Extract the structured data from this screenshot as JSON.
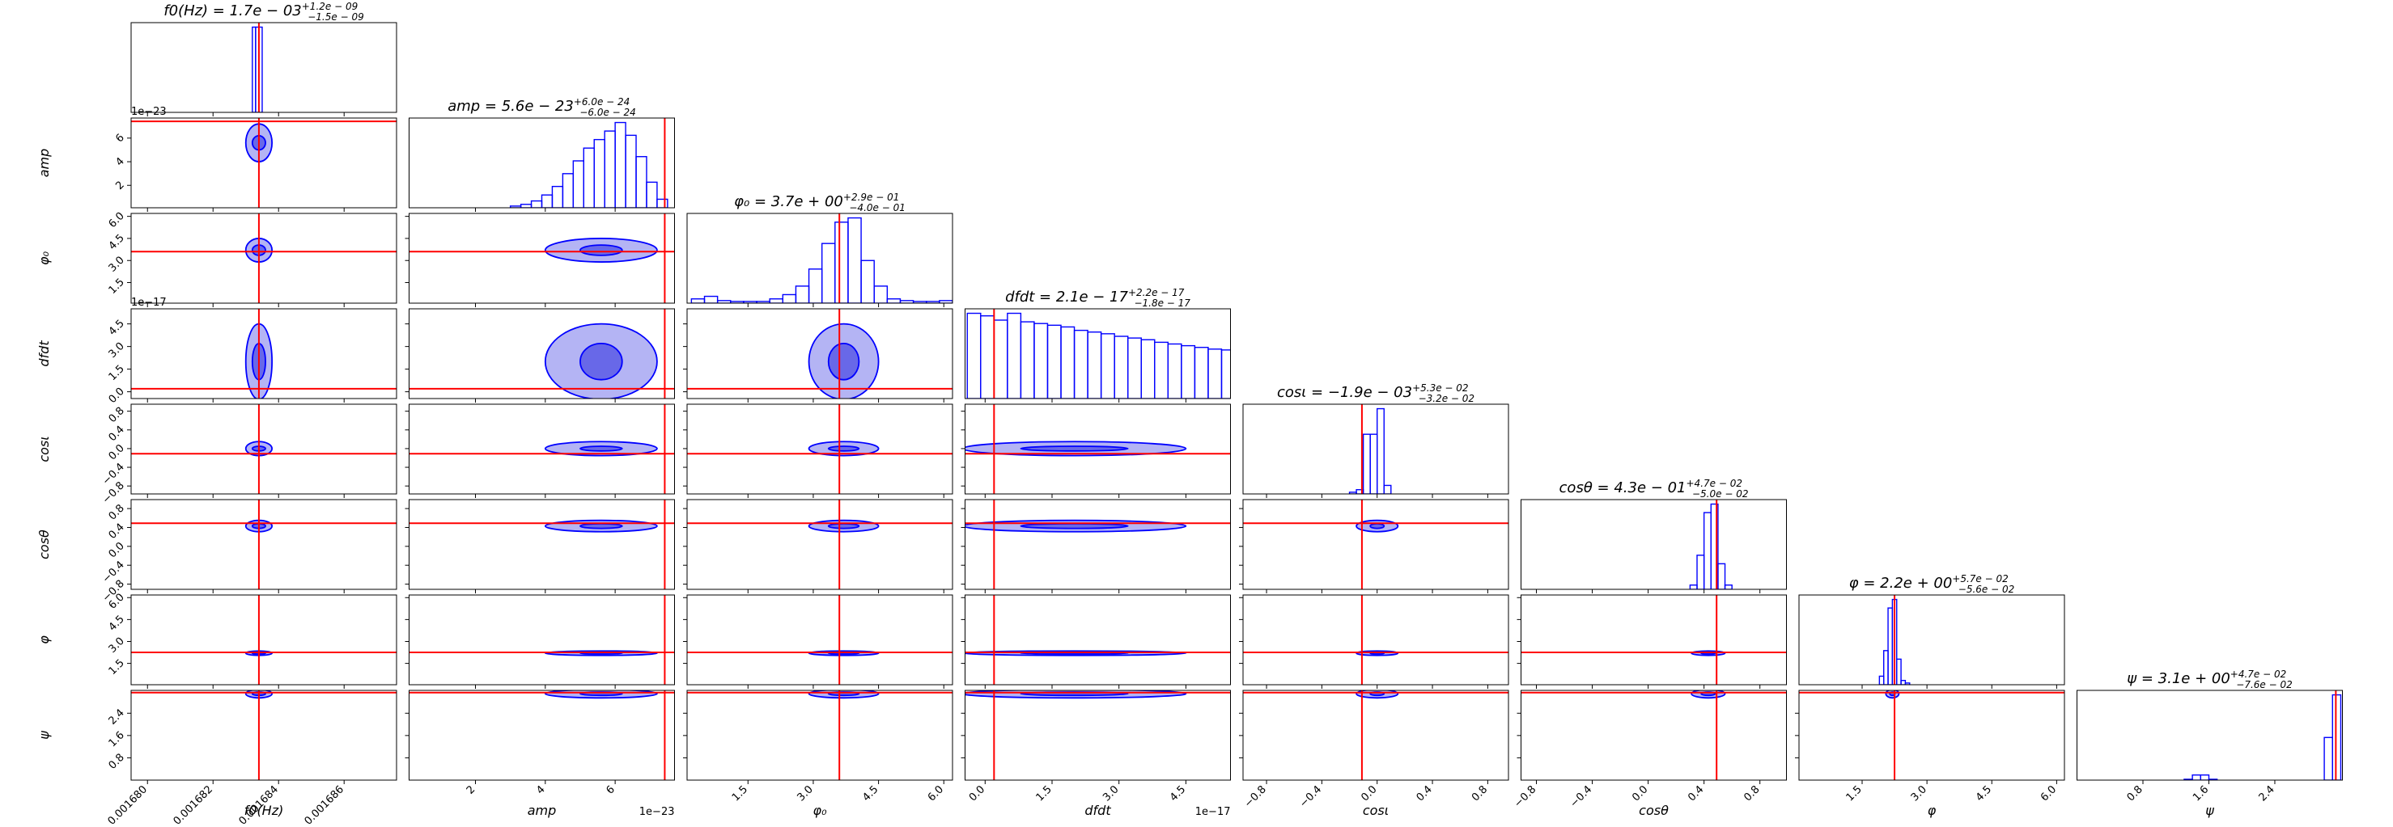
{
  "chart_data": {
    "type": "corner",
    "truth_color": "#ff0000",
    "line_color": "#0000ff",
    "outer_fill": "#b4b4f4",
    "inner_fill": "#6868e8",
    "params": [
      {
        "name": "f0(Hz)",
        "title": "f0(Hz) = 1.7e − 03",
        "title_upper": "+1.2e − 09",
        "title_lower": "−1.5e − 09",
        "lim": [
          0.0016795,
          0.0016876
        ],
        "ticks": [
          {
            "value": 0.00168,
            "label": "0.001680"
          },
          {
            "value": 0.001682,
            "label": "0.001682"
          },
          {
            "value": 0.001684,
            "label": "0.001684"
          },
          {
            "value": 0.001686,
            "label": "0.001686"
          }
        ],
        "truth": 0.0016834,
        "bins": [
          0.0016832,
          0.0016833,
          0.0016835
        ],
        "counts": [
          1.0,
          1.0
        ],
        "center": 0.0016834,
        "halfwidths": [
          4e-07,
          2e-07
        ]
      },
      {
        "name": "amp",
        "title": "amp = 5.6e − 23",
        "title_upper": "+6.0e − 24",
        "title_lower": "−6.0e − 24",
        "offset": "1e−23",
        "lim": [
          0.1,
          7.7
        ],
        "ticks": [
          2,
          4,
          6
        ],
        "truth": 7.42,
        "bins": [
          3.0,
          3.3,
          3.6,
          3.9,
          4.2,
          4.5,
          4.8,
          5.1,
          5.4,
          5.7,
          6.0,
          6.3,
          6.6,
          6.9,
          7.2,
          7.5
        ],
        "counts": [
          0.02,
          0.04,
          0.08,
          0.15,
          0.25,
          0.4,
          0.55,
          0.7,
          0.8,
          0.9,
          1.0,
          0.85,
          0.6,
          0.3,
          0.1
        ],
        "center": 5.6,
        "halfwidths": [
          1.6,
          0.6
        ]
      },
      {
        "name": "φ₀",
        "title": "φ₀ = 3.7e + 00",
        "title_upper": "+2.9e − 01",
        "title_lower": "−4.0e − 01",
        "lim": [
          0.1,
          6.2
        ],
        "ticks": [
          1.5,
          {
            "value": 3,
            "label": "3.0"
          },
          4.5,
          {
            "value": 6,
            "label": "6.0"
          }
        ],
        "truth": 3.6,
        "bins": [
          0.2,
          0.5,
          0.8,
          1.1,
          1.4,
          1.7,
          2.0,
          2.3,
          2.6,
          2.9,
          3.2,
          3.5,
          3.8,
          4.1,
          4.4,
          4.7,
          5.0,
          5.3,
          5.6,
          5.9,
          6.2
        ],
        "counts": [
          0.05,
          0.08,
          0.03,
          0.02,
          0.02,
          0.02,
          0.05,
          0.1,
          0.2,
          0.4,
          0.7,
          0.95,
          1.0,
          0.5,
          0.2,
          0.05,
          0.03,
          0.02,
          0.02,
          0.03
        ],
        "center": 3.7,
        "halfwidths": [
          0.8,
          0.35
        ]
      },
      {
        "name": "dfdt",
        "title": "dfdt = 2.1e − 17",
        "title_upper": "+2.2e − 17",
        "title_lower": "−1.8e − 17",
        "offset": "1e−17",
        "lim": [
          -0.45,
          5.5
        ],
        "ticks": [
          {
            "value": 0,
            "label": "0.0"
          },
          1.5,
          {
            "value": 3,
            "label": "3.0"
          },
          4.5
        ],
        "truth": 0.2,
        "bins": [
          -0.4,
          -0.1,
          0.2,
          0.5,
          0.8,
          1.1,
          1.4,
          1.7,
          2.0,
          2.3,
          2.6,
          2.9,
          3.2,
          3.5,
          3.8,
          4.1,
          4.4,
          4.7,
          5.0,
          5.3,
          5.6
        ],
        "counts": [
          1.0,
          0.97,
          0.92,
          1.0,
          0.9,
          0.88,
          0.86,
          0.84,
          0.8,
          0.78,
          0.76,
          0.73,
          0.71,
          0.69,
          0.66,
          0.64,
          0.62,
          0.6,
          0.58,
          0.57
        ],
        "center": 2.0,
        "halfwidths": [
          2.5,
          1.2
        ]
      },
      {
        "name": "cosι",
        "title": "cosι = −1.9e − 03",
        "title_upper": "+5.3e − 02",
        "title_lower": "−3.2e − 02",
        "lim": [
          -0.97,
          0.95
        ],
        "ticks": [
          {
            "value": -0.8,
            "label": "−0.8"
          },
          {
            "value": -0.4,
            "label": "−0.4"
          },
          {
            "value": 0,
            "label": "0.0"
          },
          0.4,
          0.8
        ],
        "truth": -0.11,
        "bins": [
          -0.2,
          -0.15,
          -0.1,
          -0.05,
          0,
          0.05,
          0.1
        ],
        "counts": [
          0.02,
          0.05,
          0.7,
          0.7,
          1.0,
          0.1
        ],
        "center": 0.0,
        "halfwidths": [
          0.15,
          0.05
        ]
      },
      {
        "name": "cosθ",
        "title": "cosθ = 4.3e − 01",
        "title_upper": "+4.7e − 02",
        "title_lower": "−5.0e − 02",
        "lim": [
          -0.91,
          0.99
        ],
        "ticks": [
          {
            "value": -0.8,
            "label": "−0.8"
          },
          {
            "value": -0.4,
            "label": "−0.4"
          },
          {
            "value": 0,
            "label": "0.0"
          },
          0.4,
          0.8
        ],
        "truth": 0.49,
        "bins": [
          0.3,
          0.35,
          0.4,
          0.45,
          0.5,
          0.55,
          0.6
        ],
        "counts": [
          0.05,
          0.4,
          0.9,
          1.0,
          0.3,
          0.05
        ],
        "center": 0.43,
        "halfwidths": [
          0.12,
          0.05
        ]
      },
      {
        "name": "φ",
        "title": "φ = 2.2e + 00",
        "title_upper": "+5.7e − 02",
        "title_lower": "−5.6e − 02",
        "lim": [
          0.04,
          6.18
        ],
        "ticks": [
          1.5,
          {
            "value": 3,
            "label": "3.0"
          },
          4.5,
          {
            "value": 6,
            "label": "6.0"
          }
        ],
        "truth": 2.25,
        "bins": [
          1.9,
          2.0,
          2.1,
          2.2,
          2.3,
          2.4,
          2.5,
          2.6
        ],
        "counts": [
          0.1,
          0.4,
          0.9,
          1.0,
          0.3,
          0.05,
          0.02
        ],
        "center": 2.2,
        "halfwidths": [
          0.15,
          0.06
        ]
      },
      {
        "name": "ψ",
        "title": "ψ = 3.1e + 00",
        "title_upper": "+4.7e − 02",
        "title_lower": "−7.6e − 02",
        "lim": [
          0.0,
          3.22
        ],
        "ticks": [
          0.8,
          1.6,
          2.4
        ],
        "truth": 3.14,
        "bins": [
          1.3,
          1.4,
          1.5,
          1.6,
          1.7,
          1.8,
          1.9,
          2.0,
          2.1,
          2.2,
          2.3,
          2.4,
          2.5,
          2.6,
          2.7,
          2.8,
          2.9,
          3.0,
          3.1,
          3.2
        ],
        "counts": [
          0.01,
          0.06,
          0.06,
          0.01,
          0,
          0,
          0,
          0,
          0,
          0,
          0,
          0,
          0,
          0,
          0,
          0,
          0,
          0.5,
          1.0
        ],
        "center": 3.1,
        "halfwidths": [
          0.15,
          0.06
        ]
      }
    ]
  }
}
